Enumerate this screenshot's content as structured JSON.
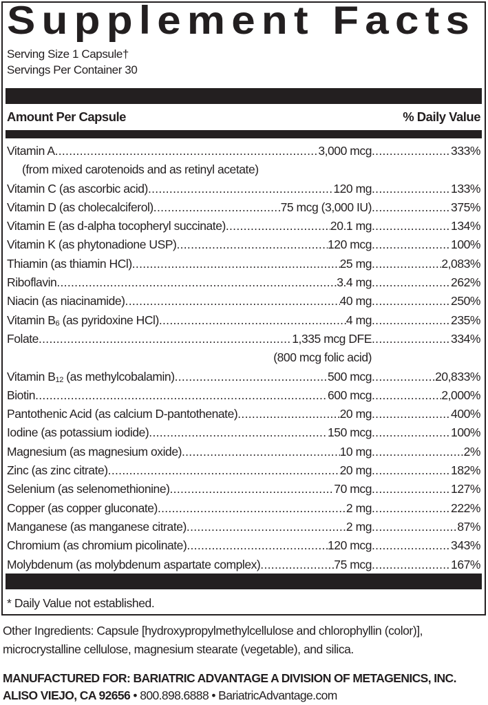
{
  "title": "Supplement Facts",
  "serving_size": "Serving Size 1 Capsule†",
  "servings_per_container": "Servings Per Container 30",
  "header": {
    "left": "Amount Per Capsule",
    "right": "% Daily Value"
  },
  "rows": [
    {
      "name": "Vitamin A",
      "sub": "",
      "rest": "",
      "amount": "3,000 mcg",
      "dv": "333%",
      "cont": "(from mixed carotenoids and as retinyl acetate)",
      "cont_align": "left"
    },
    {
      "name": "Vitamin C (as ascorbic acid)",
      "sub": "",
      "rest": "",
      "amount": "120 mg",
      "dv": "133%"
    },
    {
      "name": "Vitamin D (as cholecalciferol)",
      "sub": "",
      "rest": "",
      "amount": "75 mcg (3,000 IU)",
      "dv": "375%"
    },
    {
      "name": "Vitamin E (as d-alpha tocopheryl succinate)",
      "sub": "",
      "rest": "",
      "amount": "20.1 mg",
      "dv": "134%"
    },
    {
      "name": "Vitamin K (as phytonadione USP)",
      "sub": "",
      "rest": "",
      "amount": "120 mcg",
      "dv": "100%"
    },
    {
      "name": "Thiamin (as thiamin HCl)",
      "sub": "",
      "rest": "",
      "amount": "25 mg",
      "dv": "2,083%"
    },
    {
      "name": "Riboflavin",
      "sub": "",
      "rest": "",
      "amount": "3.4 mg",
      "dv": "262%"
    },
    {
      "name": "Niacin (as niacinamide)",
      "sub": "",
      "rest": "",
      "amount": "40 mg",
      "dv": "250%"
    },
    {
      "name": "Vitamin B",
      "sub": "6",
      "rest": " (as pyridoxine HCl)",
      "amount": "4 mg",
      "dv": "235%"
    },
    {
      "name": "Folate",
      "sub": "",
      "rest": "",
      "amount": "1,335 mcg DFE",
      "dv": "334%",
      "cont": "(800 mcg folic acid)",
      "cont_align": "right"
    },
    {
      "name": "Vitamin B",
      "sub": "12",
      "rest": " (as methylcobalamin)",
      "amount": "500 mcg",
      "dv": "20,833%"
    },
    {
      "name": "Biotin",
      "sub": "",
      "rest": "",
      "amount": "600 mcg",
      "dv": "2,000%"
    },
    {
      "name": "Pantothenic Acid (as calcium D-pantothenate)",
      "sub": "",
      "rest": "",
      "amount": "20 mg",
      "dv": "400%"
    },
    {
      "name": "Iodine (as potassium iodide)",
      "sub": "",
      "rest": "",
      "amount": "150 mcg",
      "dv": "100%"
    },
    {
      "name": "Magnesium (as magnesium oxide)",
      "sub": "",
      "rest": "",
      "amount": "10 mg",
      "dv": "2%"
    },
    {
      "name": "Zinc (as zinc citrate)",
      "sub": "",
      "rest": "",
      "amount": "20 mg",
      "dv": "182%"
    },
    {
      "name": "Selenium (as selenomethionine)",
      "sub": "",
      "rest": "",
      "amount": "70 mcg",
      "dv": "127%"
    },
    {
      "name": "Copper (as copper gluconate)",
      "sub": "",
      "rest": "",
      "amount": "2 mg",
      "dv": "222%"
    },
    {
      "name": "Manganese (as manganese citrate)",
      "sub": "",
      "rest": "",
      "amount": "2 mg",
      "dv": "87%"
    },
    {
      "name": "Chromium (as chromium picolinate)",
      "sub": "",
      "rest": "",
      "amount": "120 mcg",
      "dv": "343%"
    },
    {
      "name": "Molybdenum (as molybdenum aspartate complex)",
      "sub": "",
      "rest": "",
      "amount": "75 mcg",
      "dv": "167%"
    }
  ],
  "footnote": "* Daily Value not established.",
  "other_ingredients": "Other Ingredients: Capsule [hydroxypropylmethylcellulose and chlorophyllin (color)], microcrystalline cellulose, magnesium stearate (vegetable), and silica.",
  "manufacturer": {
    "line1": "MANUFACTURED FOR: BARIATRIC ADVANTAGE A DIVISION OF METAGENICS, INC.",
    "line2_bold": "ALISO VIEJO, CA 92656",
    "line2_rest": " • 800.898.6888 • BariatricAdvantage.com"
  }
}
